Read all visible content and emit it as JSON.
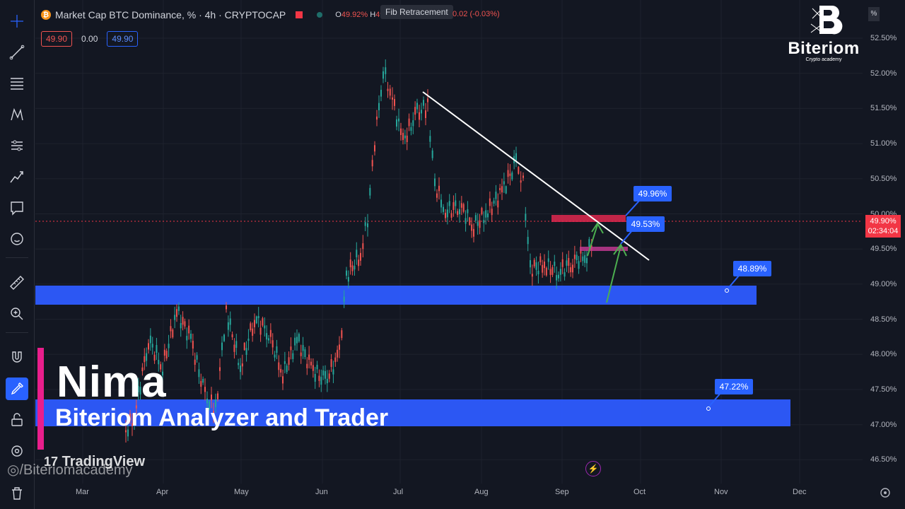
{
  "header": {
    "symbol_icon": "bitcoin-icon",
    "title": "Market Cap BTC Dominance, % · 4h · CRYPTOCAP",
    "ohlc_o_key": "O",
    "ohlc_o": "49.92%",
    "ohlc_h_key": "H",
    "ohlc_h": "49.92%",
    "ohlc_change": "0.02 (-0.03%)",
    "fib_tag": "Fib Retracement"
  },
  "price_buttons": {
    "sell": "49.90",
    "spread": "0.00",
    "buy": "49.90"
  },
  "y_axis": [
    "52.50%",
    "52.00%",
    "51.50%",
    "51.00%",
    "50.50%",
    "50.00%",
    "49.50%",
    "49.00%",
    "48.50%",
    "48.00%",
    "47.50%",
    "47.00%",
    "46.50%"
  ],
  "x_axis": [
    "Mar",
    "Apr",
    "May",
    "Jun",
    "Jul",
    "Aug",
    "Sep",
    "Oct",
    "Nov",
    "Dec"
  ],
  "current_price": {
    "value": "49.90%",
    "countdown": "02:34:04",
    "color": "#f23645"
  },
  "callouts": {
    "c1": "49.96%",
    "c2": "49.53%",
    "c3": "48.89%",
    "c4": "47.22%"
  },
  "overlay": {
    "name": "Nima",
    "role": "Biteriom Analyzer and Trader",
    "tv_logo": "TradingView",
    "handle": "/Biteriomacademy"
  },
  "brand": {
    "name": "Biteriom",
    "sub": "Crypto academy"
  },
  "percent_toggle": "%",
  "colors": {
    "background": "#131722",
    "accent_blue": "#2962ff",
    "zone_blue": "#2d5bff",
    "zone_red": "#e0284f",
    "up": "#26a69a",
    "down": "#ef5350"
  },
  "toolbar_icons": [
    "crosshair-icon",
    "trendline-icon",
    "fib-icon",
    "pattern-icon",
    "prediction-icon",
    "brush-icon",
    "text-note-icon",
    "emoji-icon",
    "ruler-icon",
    "zoom-icon",
    "magnet-icon",
    "lock-drawing-icon",
    "unlock-icon",
    "eye-icon",
    "trash-icon"
  ]
}
